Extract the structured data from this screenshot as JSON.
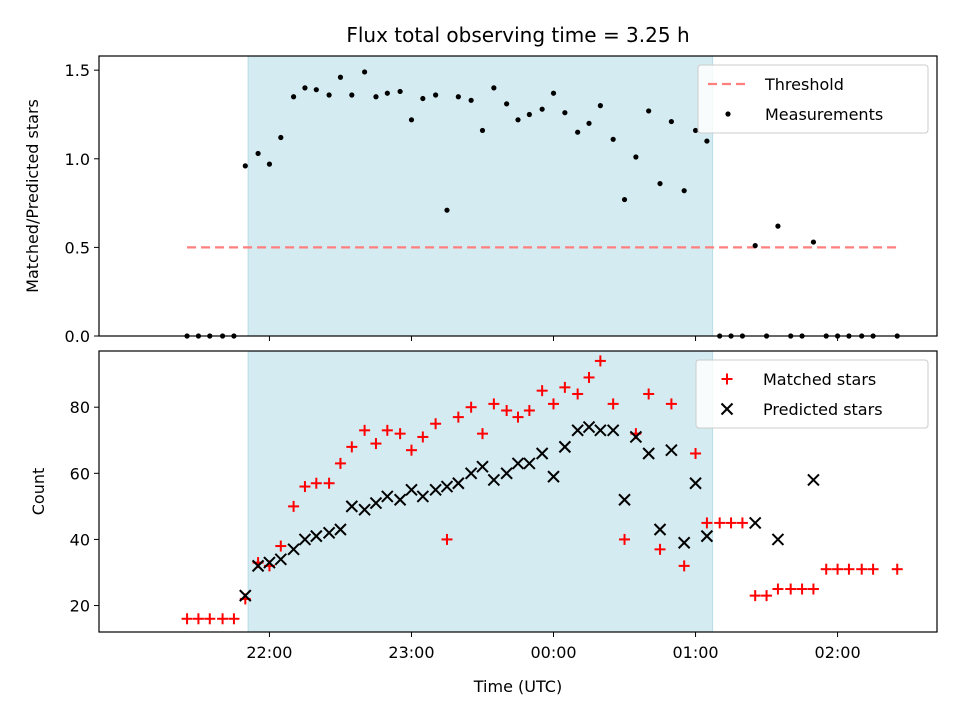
{
  "chart_data": {
    "type": "scatter",
    "title": "Flux total observing time = 3.25 h",
    "xlabel": "Time (UTC)",
    "x_tick_labels": [
      "22:00",
      "23:00",
      "00:00",
      "01:00",
      "02:00"
    ],
    "x_ticks_hours": [
      22,
      23,
      24,
      25,
      26
    ],
    "x_range_hours": [
      20.8,
      26.7
    ],
    "shaded_interval_hours": [
      21.85,
      25.12
    ],
    "shade_color": "#d4ebf1",
    "top_panel": {
      "ylabel": "Matched/Predicted stars",
      "ylim": [
        0,
        1.58
      ],
      "y_ticks": [
        "0.0",
        "0.5",
        "1.0",
        "1.5"
      ],
      "threshold": {
        "name": "Threshold",
        "value": 0.5,
        "x_from": 21.42,
        "x_to": 26.42,
        "color": "#ff7f7f"
      },
      "measurements": {
        "name": "Measurements",
        "color": "#000000",
        "x": [
          21.42,
          21.5,
          21.58,
          21.67,
          21.75,
          21.83,
          21.92,
          22.0,
          22.08,
          22.17,
          22.25,
          22.33,
          22.42,
          22.5,
          22.58,
          22.67,
          22.75,
          22.83,
          22.92,
          23.0,
          23.08,
          23.17,
          23.25,
          23.33,
          23.42,
          23.5,
          23.58,
          23.67,
          23.75,
          23.83,
          23.92,
          24.0,
          24.08,
          24.17,
          24.25,
          24.33,
          24.42,
          24.5,
          24.58,
          24.67,
          24.75,
          24.83,
          24.92,
          25.0,
          25.08,
          25.17,
          25.25,
          25.33,
          25.42,
          25.5,
          25.58,
          25.67,
          25.75,
          25.83,
          25.92,
          26.0,
          26.08,
          26.17,
          26.25,
          26.42
        ],
        "y": [
          0.0,
          0.0,
          0.0,
          0.0,
          0.0,
          0.96,
          1.03,
          0.97,
          1.12,
          1.35,
          1.4,
          1.39,
          1.36,
          1.46,
          1.36,
          1.49,
          1.35,
          1.37,
          1.38,
          1.22,
          1.34,
          1.36,
          0.71,
          1.35,
          1.33,
          1.16,
          1.4,
          1.31,
          1.22,
          1.25,
          1.28,
          1.37,
          1.26,
          1.15,
          1.2,
          1.3,
          1.11,
          0.77,
          1.01,
          1.27,
          0.86,
          1.21,
          0.82,
          1.16,
          1.1,
          0.0,
          0.0,
          0.0,
          0.51,
          0.0,
          0.62,
          0.0,
          0.0,
          0.53,
          0.0,
          0.0,
          0.0,
          0.0,
          0.0,
          0.0
        ]
      }
    },
    "bottom_panel": {
      "ylabel": "Count",
      "ylim": [
        12,
        97
      ],
      "y_ticks": [
        "20",
        "40",
        "60",
        "80"
      ],
      "y_tick_values": [
        20,
        40,
        60,
        80
      ],
      "series": [
        {
          "name": "Matched stars",
          "marker": "plus",
          "color": "#ff0000",
          "x": [
            21.42,
            21.5,
            21.58,
            21.67,
            21.75,
            21.83,
            21.92,
            22.0,
            22.08,
            22.17,
            22.25,
            22.33,
            22.42,
            22.5,
            22.58,
            22.67,
            22.75,
            22.83,
            22.92,
            23.0,
            23.08,
            23.17,
            23.25,
            23.33,
            23.42,
            23.5,
            23.58,
            23.67,
            23.75,
            23.83,
            23.92,
            24.0,
            24.08,
            24.17,
            24.25,
            24.33,
            24.42,
            24.5,
            24.58,
            24.67,
            24.75,
            24.83,
            24.92,
            25.0,
            25.08,
            25.17,
            25.25,
            25.33,
            25.42,
            25.5,
            25.58,
            25.67,
            25.75,
            25.83,
            25.92,
            26.0,
            26.08,
            26.17,
            26.25,
            26.42
          ],
          "y": [
            16,
            16,
            16,
            16,
            16,
            22,
            33,
            32,
            38,
            50,
            56,
            57,
            57,
            63,
            68,
            73,
            69,
            73,
            72,
            67,
            71,
            75,
            40,
            77,
            80,
            72,
            81,
            79,
            77,
            79,
            85,
            81,
            86,
            84,
            89,
            94,
            81,
            40,
            72,
            84,
            37,
            81,
            32,
            66,
            45,
            45,
            45,
            45,
            23,
            23,
            25,
            25,
            25,
            25,
            31,
            31,
            31,
            31,
            31,
            31
          ]
        },
        {
          "name": "Predicted stars",
          "marker": "x",
          "color": "#000000",
          "x": [
            21.83,
            21.92,
            22.0,
            22.08,
            22.17,
            22.25,
            22.33,
            22.42,
            22.5,
            22.58,
            22.67,
            22.75,
            22.83,
            22.92,
            23.0,
            23.08,
            23.17,
            23.25,
            23.33,
            23.42,
            23.5,
            23.58,
            23.67,
            23.75,
            23.83,
            23.92,
            24.0,
            24.08,
            24.17,
            24.25,
            24.33,
            24.42,
            24.5,
            24.58,
            24.67,
            24.75,
            24.83,
            24.92,
            25.0,
            25.08,
            25.42,
            25.58,
            25.83
          ],
          "y": [
            23,
            32,
            33,
            34,
            37,
            40,
            41,
            42,
            43,
            50,
            49,
            51,
            53,
            52,
            55,
            53,
            55,
            56,
            57,
            60,
            62,
            58,
            60,
            63,
            63,
            66,
            59,
            68,
            73,
            74,
            73,
            73,
            52,
            71,
            66,
            43,
            67,
            39,
            57,
            41,
            45,
            40,
            58
          ]
        }
      ]
    }
  }
}
